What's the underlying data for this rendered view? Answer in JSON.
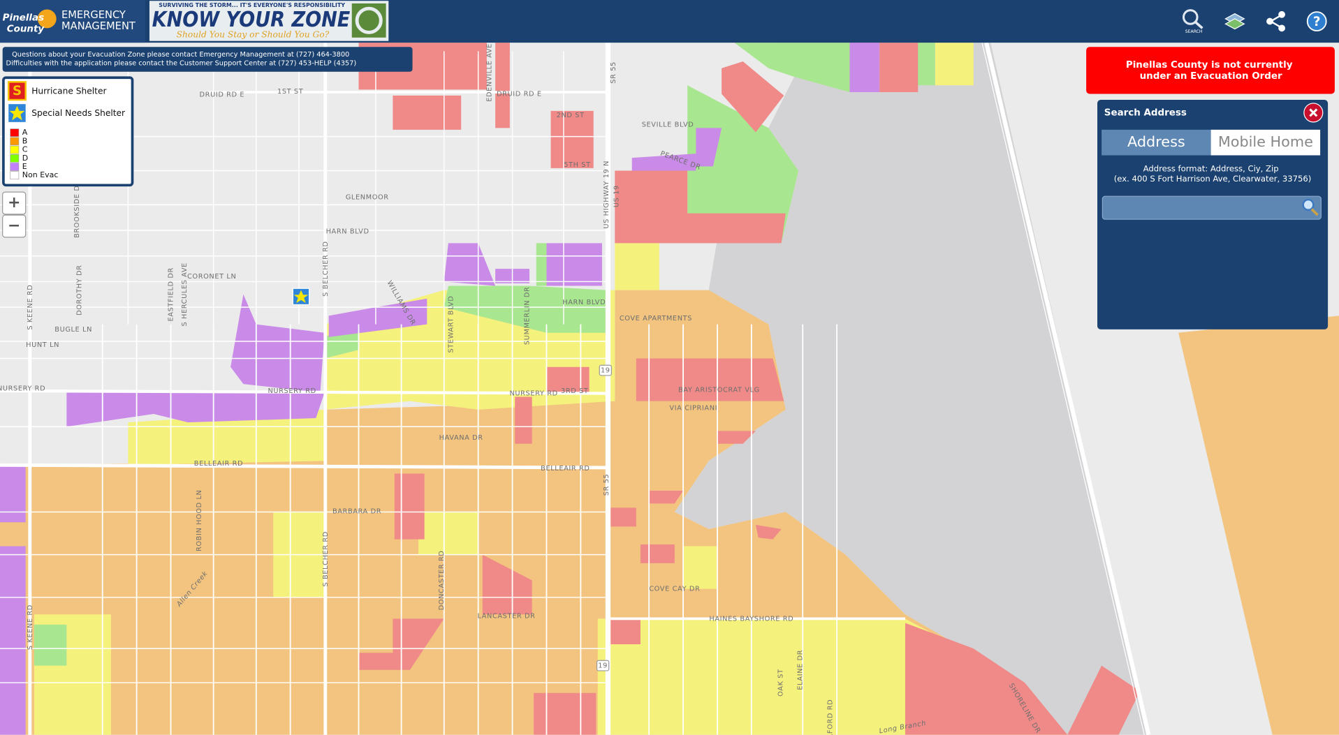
{
  "header": {
    "logo_line1": "Pinellas",
    "logo_line2": "County",
    "agency_line1": "EMERGENCY",
    "agency_line2": "MANAGEMENT",
    "banner_top": "SURVIVING THE STORM... IT'S EVERYONE'S RESPONSIBILITY",
    "banner_title": "KNOW YOUR ZONE",
    "banner_subtitle": "Should You Stay or Should You Go?",
    "search_label": "SEARCH",
    "help_icon": "?"
  },
  "info": [
    "Questions about your Evacuation Zone please contact Emergency Management at (727) 464-3800",
    "Difficulties with the application please contact the Customer Support Center at (727) 453-HELP (4357)"
  ],
  "legend": {
    "shelters": [
      {
        "label": "Hurricane Shelter",
        "icon": "S"
      },
      {
        "label": "Special Needs Shelter"
      }
    ],
    "zones": [
      {
        "label": "A",
        "color": "#ff0000"
      },
      {
        "label": "B",
        "color": "#ff9900"
      },
      {
        "label": "C",
        "color": "#ffff00"
      },
      {
        "label": "D",
        "color": "#80ff00"
      },
      {
        "label": "E",
        "color": "#c080ff"
      },
      {
        "label": "Non Evac",
        "color": "#ffffff"
      }
    ]
  },
  "zoom": {
    "in": "+",
    "out": "−"
  },
  "alert": [
    "Pinellas County is not currently",
    "under an Evacuation Order"
  ],
  "search": {
    "title": "Search Address",
    "tabs": [
      "Address",
      "Mobile Home"
    ],
    "format_lines": [
      "Address format: Address, Ciy, Zip",
      "(ex. 400 S Fort Harrison Ave, Clearwater, 33756)"
    ]
  },
  "map_labels": [
    "DRUID RD E",
    "1ST ST",
    "DRUID RD E",
    "2ND ST",
    "5TH ST",
    "SEVILLE BLVD",
    "PEARCE DR",
    "GLENMOOR",
    "HARN BLVD",
    "HARN BLVD",
    "CORONET LN",
    "BUGLE LN",
    "HUNT LN",
    "NURSERY RD",
    "NURSERY RD",
    "NURSERY RD",
    "3RD ST",
    "COVE APARTMENTS",
    "BAY ARISTOCRAT VLG",
    "VIA CIPRIANI",
    "HAVANA DR",
    "BELLEAIR RD",
    "BELLEAIR RD",
    "BARBARA DR",
    "COVE CAY DR",
    "HAINES BAYSHORE RD",
    "LANCASTER DR",
    "US HIGHWAY 19 N",
    "US 19",
    "SR 55",
    "SR 55",
    "S BELCHER RD",
    "S BELCHER RD",
    "S KEENE RD",
    "S KEENE RD",
    "EDENVILLE AVE",
    "BROOKSIDE DR",
    "DOROTHY DR",
    "EASTFIELD DR",
    "S HERCULES AVE",
    "WILLIAMS DR",
    "STEWART BLVD",
    "SUMMERLIN DR",
    "DONCASTER RD",
    "ROBIN HOOD LN",
    "Allen Creek",
    "Long Branch",
    "SHORELINE DR",
    "ELAINE DR",
    "OAK ST",
    "ALFORD RD",
    "19",
    "19"
  ]
}
